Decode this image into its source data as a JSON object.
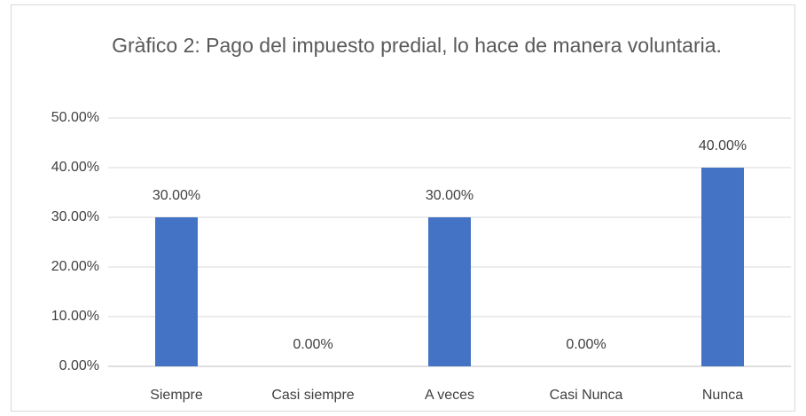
{
  "chart_data": {
    "type": "bar",
    "title": "Gràfico 2: Pago del impuesto predial, lo hace de manera voluntaria.",
    "categories": [
      "Siempre",
      "Casi siempre",
      "A veces",
      "Casi Nunca",
      "Nunca"
    ],
    "values": [
      30,
      0,
      30,
      0,
      40
    ],
    "value_labels": [
      "30.00%",
      "0.00%",
      "30.00%",
      "0.00%",
      "40.00%"
    ],
    "color": "#4472c4",
    "ylim": [
      0,
      50
    ],
    "yticks": [
      {
        "value": 0,
        "label": "0.00%"
      },
      {
        "value": 10,
        "label": "10.00%"
      },
      {
        "value": 20,
        "label": "20.00%"
      },
      {
        "value": 30,
        "label": "30.00%"
      },
      {
        "value": 40,
        "label": "40.00%"
      },
      {
        "value": 50,
        "label": "50.00%"
      }
    ],
    "grid": true
  }
}
